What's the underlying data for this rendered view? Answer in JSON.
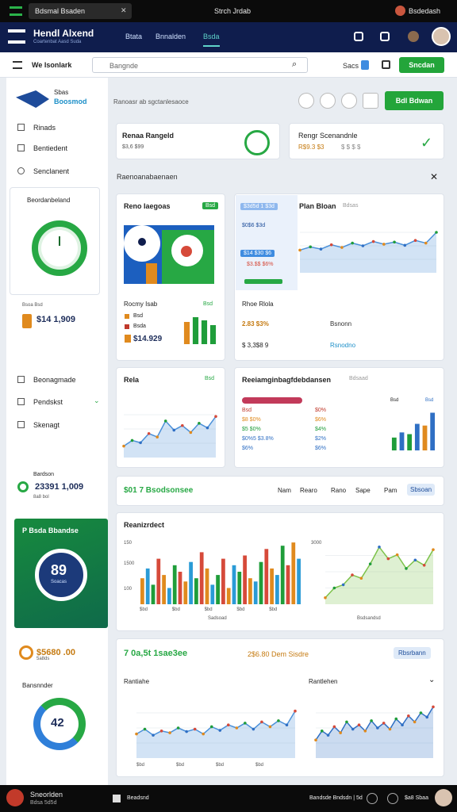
{
  "status_bar": {
    "tab": "Bdsmal Bsaden",
    "center": "Strch Jrdab",
    "profile": "Bsdedash"
  },
  "header": {
    "title": "Hendl Alxend",
    "subtitle": "Coartenbat Aasd Suda",
    "nav": [
      "Btata",
      "Bnnalden",
      "Bsda"
    ]
  },
  "toolbar": {
    "label": "We Isonlark",
    "search": "Bangnde",
    "link": "Sacs",
    "button": "Sncdan"
  },
  "sidebar": {
    "brand": "Sbas",
    "brand_sub": "Boosmod",
    "menu": [
      "Rinads",
      "Bentiedent",
      "Senclanent"
    ],
    "gauge_title": "Beordanbeland",
    "stat_label": "Bsoa Bsd",
    "stat_value": "$14 1,909",
    "menu2": [
      "Beonagmade",
      "Pendskst",
      "Skenagt"
    ],
    "stat2_label": "Bardson",
    "stat2_value": "23391 1,009",
    "stat2_sub": "8a8 bol",
    "card_title": "P Bsda Bbandse",
    "card_value": "89",
    "card_sub": "Soacas",
    "stat3_value": "$5680 .00",
    "stat3_sub": "5a8ds",
    "donut_title": "Bansnnder",
    "donut_value": "42"
  },
  "main": {
    "subtitle": "Ranoasr ab sgctanlesaoce",
    "button": "Bdl Bdwan",
    "kpi": [
      {
        "title": "Renaa Rangeld",
        "value": "$3,6 $99"
      },
      {
        "title": "Rengr Scenandnle",
        "value": "R$9.3 $3",
        "sub": "$ $ $ $"
      }
    ],
    "section_title": "Raenoanabaenaen",
    "card_a": {
      "title": "Reno Iaegoas",
      "tag": "Bsd",
      "sub": "Rocmy Isab",
      "sub_tag": "Bsd",
      "legend": [
        "Bsd",
        "Bsda"
      ],
      "value": "$14.929"
    },
    "card_b": {
      "title": "Plan Bloan",
      "title_sub": "Bdsas",
      "chips": [
        "$3d5d 1 $3d",
        "$0$6 $3d",
        "$14 $30 $6",
        "$3.$$ $6%"
      ],
      "list_title": "Rhoe Rlola",
      "rows": [
        [
          "2.83 $3%",
          "Bsnonn"
        ],
        [
          "$ 3,3$8 9",
          "Rsnodno"
        ]
      ]
    },
    "card_c": {
      "title": "Rela",
      "tag": "Bsd"
    },
    "card_d": {
      "title": "Reeiamginbagfdebdansen",
      "title_sub": "Bdsaad",
      "table": [
        [
          "Bsd",
          "$0%"
        ],
        [
          "$8 $0%",
          "$6%"
        ],
        [
          "$5 $0%",
          "$4%"
        ],
        [
          "$0%5 $3.8%",
          "$2%"
        ],
        [
          "$6%",
          "$6%"
        ]
      ],
      "legend": [
        "Bsd",
        "Bsd"
      ]
    },
    "tabs_row": {
      "title": "$01 7 Bsodsonsee",
      "tabs": [
        "Nam",
        "Rearo",
        "Rano",
        "Sape",
        "Pam",
        "Sbsoan"
      ]
    },
    "card_e": {
      "title": "Reanizrdect",
      "axis": [
        "150",
        "1500",
        "100",
        "3000"
      ],
      "x_labels": [
        "$bd",
        "$bd",
        "$bd",
        "$bd",
        "$bd"
      ],
      "caption": "Sadsoad",
      "caption2": "Bsdsandsd"
    },
    "card_f": {
      "title": "7 0a,5t 1sae3ee",
      "mid": "2$6.80 Dem Sisdre",
      "button": "Rbsrbann",
      "left_title": "Rantiahe",
      "right_title": "Rantlehen",
      "x_labels": [
        "$bd",
        "$bd",
        "$bd",
        "$bd"
      ]
    }
  },
  "charts": {
    "plan": {
      "ylim": [
        0,
        100
      ],
      "color": "#4a90d9",
      "values": [
        42,
        48,
        44,
        52,
        47,
        55,
        50,
        58,
        53,
        57,
        51,
        60,
        55,
        75
      ]
    },
    "rela": {
      "ylim": [
        0,
        100
      ],
      "color": "#4a90d9",
      "values": [
        20,
        30,
        26,
        42,
        36,
        64,
        48,
        56,
        44,
        60,
        52,
        72
      ]
    },
    "a_bars": {
      "ylim": [
        0,
        100
      ],
      "palette": [
        "#e08a1e",
        "#1f9d3a",
        "#1f9d3a",
        "#1f9d3a"
      ],
      "values": [
        70,
        85,
        75,
        60
      ]
    },
    "d_bars": {
      "ylim": [
        0,
        100
      ],
      "palette": [
        "#1f9d3a",
        "#2f6fc4",
        "#1f9d3a",
        "#2f6fc4",
        "#e08a1e",
        "#2f6fc4"
      ],
      "values": [
        30,
        42,
        38,
        62,
        58,
        88
      ]
    },
    "e_bars": {
      "ylim": [
        0,
        100
      ],
      "palette": [
        "#e08a1e",
        "#2a9bd6",
        "#1f9d3a",
        "#d64a3a"
      ],
      "values": [
        40,
        55,
        30,
        70,
        45,
        25,
        60,
        50,
        35,
        65,
        40,
        80,
        55,
        30,
        45,
        70,
        25,
        60,
        50,
        75,
        40,
        35,
        65,
        85,
        55,
        45,
        90,
        60,
        95,
        70
      ]
    },
    "e_area": {
      "ylim": [
        0,
        100
      ],
      "color": "#7cc24a",
      "values": [
        10,
        25,
        30,
        45,
        40,
        62,
        88,
        70,
        76,
        55,
        68,
        60,
        84
      ]
    },
    "f_line1": {
      "ylim": [
        0,
        100
      ],
      "color": "#4a90d9",
      "values": [
        40,
        48,
        38,
        45,
        42,
        50,
        44,
        48,
        40,
        52,
        46,
        55,
        50,
        58,
        48,
        60,
        52,
        62,
        55,
        78
      ]
    },
    "f_line2": {
      "ylim": [
        0,
        100
      ],
      "color": "#2f6fc4",
      "values": [
        30,
        45,
        38,
        52,
        42,
        60,
        48,
        55,
        45,
        62,
        50,
        58,
        48,
        65,
        55,
        70,
        60,
        75,
        68,
        85
      ]
    }
  },
  "bottom_bar": {
    "name": "Sneorlden",
    "name_sub": "Bdsa 5d5d",
    "app": "Beadsnd",
    "right": "Bandsde Bndsdn | 5d",
    "right_sub": "$a8 Sbaa"
  }
}
